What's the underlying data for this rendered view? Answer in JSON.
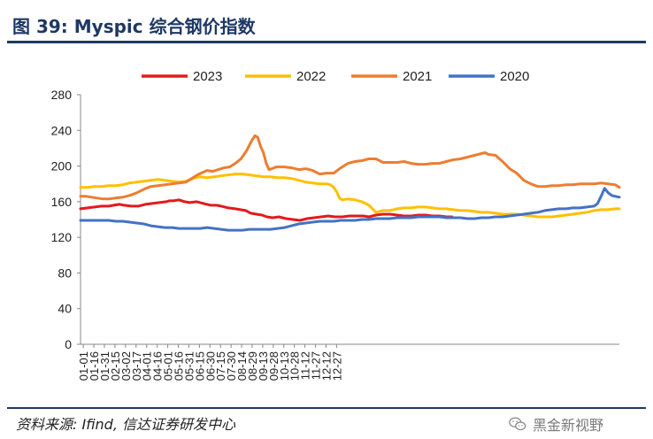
{
  "page": {
    "title": "图 39:  Myspic 综合钢价指数",
    "source": "资料来源:  Ifind,  信达证券研发中心",
    "watermark": "黑金新视野",
    "watermark_icon": "wechat-icon"
  },
  "chart_data": {
    "type": "line",
    "title": "",
    "xlabel": "",
    "ylabel": "",
    "ylim": [
      0,
      280
    ],
    "yticks": [
      0,
      40,
      80,
      120,
      160,
      200,
      240,
      280
    ],
    "xticks": [
      "01-01",
      "01-16",
      "01-31",
      "02-15",
      "03-02",
      "03-17",
      "04-01",
      "04-16",
      "05-01",
      "05-16",
      "05-31",
      "06-15",
      "06-30",
      "07-15",
      "07-30",
      "08-14",
      "08-29",
      "09-13",
      "09-28",
      "10-13",
      "10-28",
      "11-12",
      "11-27",
      "12-12",
      "12-27"
    ],
    "grid": false,
    "legend_position": "top",
    "series": [
      {
        "name": "2023",
        "color": "#e31a1c",
        "width": 3,
        "x": [
          0,
          10,
          20,
          30,
          40,
          47,
          55,
          62,
          72,
          82,
          92,
          102,
          112,
          122,
          126,
          132,
          140,
          148,
          155,
          165,
          175,
          185,
          193,
          200,
          210,
          220,
          227,
          235,
          242,
          250,
          258,
          265,
          273,
          282,
          292,
          302,
          312,
          322,
          332,
          342,
          352,
          362,
          372,
          382,
          392,
          402,
          410,
          420,
          430,
          440,
          450,
          460,
          470,
          480,
          490,
          500,
          510,
          520,
          528
        ],
        "y": [
          152,
          153,
          154,
          155,
          155,
          156,
          157,
          156,
          155,
          155,
          157,
          158,
          159,
          160,
          161,
          161,
          162,
          160,
          159,
          160,
          158,
          156,
          156,
          155,
          153,
          152,
          151,
          150,
          147,
          146,
          145,
          143,
          142,
          143,
          141,
          140,
          139,
          141,
          142,
          143,
          144,
          143,
          143,
          144,
          144,
          144,
          143,
          145,
          146,
          146,
          145,
          144,
          144,
          145,
          145,
          144,
          144,
          143,
          143
        ]
      },
      {
        "name": "2022",
        "color": "#ffc000",
        "width": 3,
        "x": [
          0,
          10,
          20,
          30,
          40,
          50,
          60,
          70,
          80,
          90,
          100,
          110,
          120,
          130,
          140,
          150,
          160,
          170,
          180,
          190,
          200,
          210,
          220,
          230,
          240,
          250,
          260,
          270,
          280,
          290,
          300,
          310,
          320,
          330,
          340,
          350,
          355,
          360,
          365,
          368,
          372,
          380,
          390,
          400,
          410,
          420,
          430,
          440,
          450,
          460,
          470,
          480,
          490,
          500,
          510,
          520,
          530,
          540,
          550,
          560,
          570,
          580,
          590,
          600,
          610,
          620,
          630,
          640,
          650,
          660,
          670,
          680,
          690,
          700,
          710,
          720,
          730,
          740,
          750,
          760,
          766
        ],
        "y": [
          176,
          176,
          177,
          177,
          178,
          178,
          179,
          181,
          182,
          183,
          184,
          185,
          184,
          183,
          182,
          183,
          186,
          188,
          187,
          188,
          189,
          190,
          191,
          191,
          190,
          189,
          188,
          188,
          187,
          187,
          186,
          184,
          182,
          181,
          180,
          180,
          179,
          176,
          170,
          164,
          162,
          163,
          162,
          160,
          156,
          148,
          150,
          150,
          152,
          153,
          153,
          154,
          154,
          153,
          152,
          152,
          151,
          150,
          150,
          149,
          148,
          148,
          147,
          146,
          146,
          146,
          145,
          144,
          143,
          143,
          143,
          144,
          145,
          146,
          147,
          148,
          150,
          151,
          151,
          152,
          152
        ]
      },
      {
        "name": "2021",
        "color": "#ed7d31",
        "width": 3,
        "x": [
          0,
          8,
          16,
          24,
          32,
          40,
          50,
          60,
          70,
          80,
          90,
          100,
          110,
          120,
          130,
          140,
          150,
          158,
          166,
          174,
          180,
          188,
          196,
          204,
          212,
          220,
          228,
          236,
          243,
          248,
          252,
          256,
          260,
          264,
          268,
          272,
          278,
          284,
          290,
          300,
          310,
          320,
          330,
          340,
          350,
          360,
          370,
          380,
          390,
          400,
          410,
          420,
          430,
          440,
          450,
          460,
          470,
          480,
          490,
          500,
          510,
          520,
          530,
          540,
          550,
          560,
          570,
          575,
          580,
          590,
          600,
          610,
          620,
          630,
          640,
          650,
          660,
          670,
          680,
          690,
          700,
          710,
          720,
          730,
          740,
          750,
          760,
          766
        ],
        "y": [
          166,
          166,
          165,
          164,
          163,
          163,
          164,
          165,
          167,
          170,
          174,
          177,
          178,
          179,
          180,
          181,
          182,
          186,
          190,
          193,
          195,
          194,
          196,
          198,
          199,
          203,
          208,
          217,
          228,
          234,
          232,
          222,
          215,
          203,
          196,
          197,
          199,
          199,
          199,
          198,
          196,
          197,
          195,
          191,
          192,
          192,
          198,
          203,
          205,
          206,
          208,
          208,
          204,
          204,
          204,
          205,
          203,
          202,
          202,
          203,
          203,
          205,
          207,
          208,
          210,
          212,
          214,
          215,
          213,
          212,
          205,
          197,
          192,
          184,
          180,
          177,
          177,
          178,
          178,
          179,
          179,
          180,
          180,
          180,
          181,
          180,
          179,
          176
        ]
      },
      {
        "name": "2020",
        "color": "#4472c4",
        "width": 3,
        "x": [
          0,
          10,
          20,
          30,
          40,
          50,
          60,
          70,
          80,
          90,
          100,
          110,
          120,
          130,
          140,
          150,
          160,
          170,
          180,
          190,
          200,
          210,
          220,
          230,
          240,
          250,
          260,
          270,
          280,
          290,
          300,
          310,
          320,
          330,
          340,
          350,
          360,
          370,
          380,
          390,
          400,
          410,
          420,
          430,
          440,
          450,
          460,
          470,
          480,
          490,
          500,
          510,
          520,
          530,
          540,
          550,
          560,
          570,
          580,
          590,
          600,
          610,
          620,
          630,
          640,
          650,
          660,
          670,
          680,
          690,
          700,
          710,
          720,
          730,
          735,
          740,
          745,
          750,
          755,
          760,
          766
        ],
        "y": [
          139,
          139,
          139,
          139,
          139,
          138,
          138,
          137,
          136,
          135,
          133,
          132,
          131,
          131,
          130,
          130,
          130,
          130,
          131,
          130,
          129,
          128,
          128,
          128,
          129,
          129,
          129,
          129,
          130,
          131,
          133,
          135,
          136,
          137,
          138,
          138,
          138,
          139,
          139,
          139,
          140,
          140,
          141,
          141,
          141,
          142,
          142,
          142,
          143,
          143,
          143,
          143,
          142,
          142,
          142,
          141,
          141,
          142,
          142,
          143,
          143,
          144,
          145,
          146,
          147,
          148,
          150,
          151,
          152,
          152,
          153,
          153,
          154,
          155,
          158,
          166,
          175,
          170,
          167,
          166,
          165
        ]
      }
    ]
  }
}
